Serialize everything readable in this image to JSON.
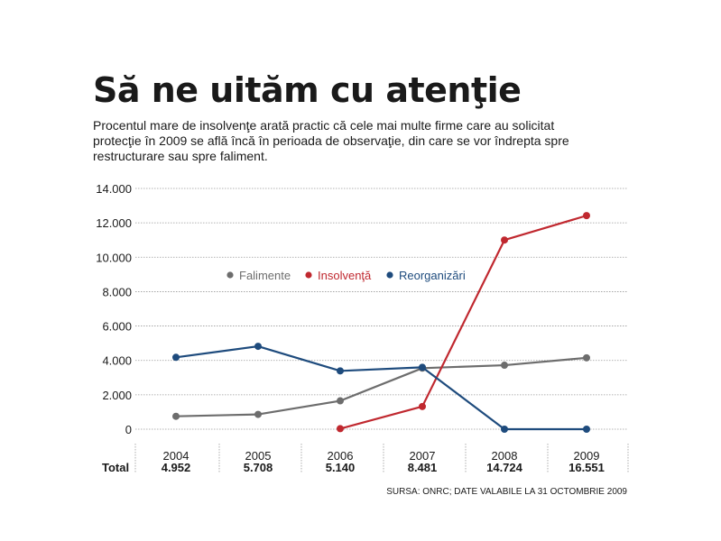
{
  "header": {
    "title": "Să ne uităm cu atenţie",
    "subtitle": "Procentul mare de insolvenţe arată practic că cele mai multe firme care au solicitat protecţie în 2009 se află încă în perioada de observaţie, din care se vor îndrepta spre restructurare sau spre faliment."
  },
  "source": "SURSA: ONRC; DATE VALABILE LA 31 OCTOMBRIE 2009",
  "colors": {
    "falimente": "#6d6d6d",
    "insolventa": "#c0282f",
    "reorganizari": "#1e4b7d",
    "grid": "#9a9a9a"
  },
  "chart_data": {
    "type": "line",
    "x": [
      "2004",
      "2005",
      "2006",
      "2007",
      "2008",
      "2009"
    ],
    "ylim": [
      0,
      14000
    ],
    "yticks": [
      0,
      2000,
      4000,
      6000,
      8000,
      10000,
      12000,
      14000
    ],
    "ytick_labels": [
      "0",
      "2.000",
      "4.000",
      "6.000",
      "8.000",
      "10.000",
      "12.000",
      "14.000"
    ],
    "grid": true,
    "legend_position": "center-left",
    "series": [
      {
        "name": "Falimente",
        "color": "#6d6d6d",
        "values": [
          750,
          860,
          1650,
          3550,
          3720,
          4150
        ]
      },
      {
        "name": "Insolvenţă",
        "color": "#c0282f",
        "values": [
          null,
          null,
          30,
          1320,
          11000,
          12420
        ]
      },
      {
        "name": "Reorganizări",
        "color": "#1e4b7d",
        "values": [
          4180,
          4820,
          3390,
          3600,
          0,
          0
        ]
      }
    ],
    "totals_label": "Total",
    "totals": [
      "4.952",
      "5.708",
      "5.140",
      "8.481",
      "14.724",
      "16.551"
    ]
  }
}
